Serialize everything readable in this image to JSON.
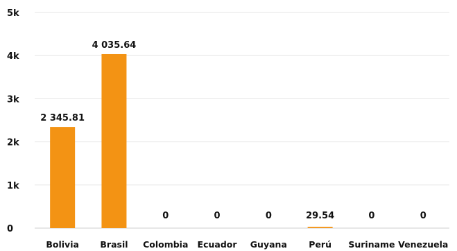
{
  "chart_data": {
    "type": "bar",
    "categories": [
      "Bolivia",
      "Brasil",
      "Colombia",
      "Ecuador",
      "Guyana",
      "Perú",
      "Suriname",
      "Venezuela"
    ],
    "values": [
      2345.81,
      4035.64,
      0,
      0,
      0,
      29.54,
      0,
      0
    ],
    "data_labels": [
      "2 345.81",
      "4 035.64",
      "0",
      "0",
      "0",
      "29.54",
      "0",
      "0"
    ],
    "ylim": [
      0,
      5000
    ],
    "yticks": [
      0,
      1000,
      2000,
      3000,
      4000,
      5000
    ],
    "ytick_labels": [
      "0",
      "1k",
      "2k",
      "3k",
      "4k",
      "5k"
    ],
    "grid": true,
    "bar_color": "#F39314"
  }
}
